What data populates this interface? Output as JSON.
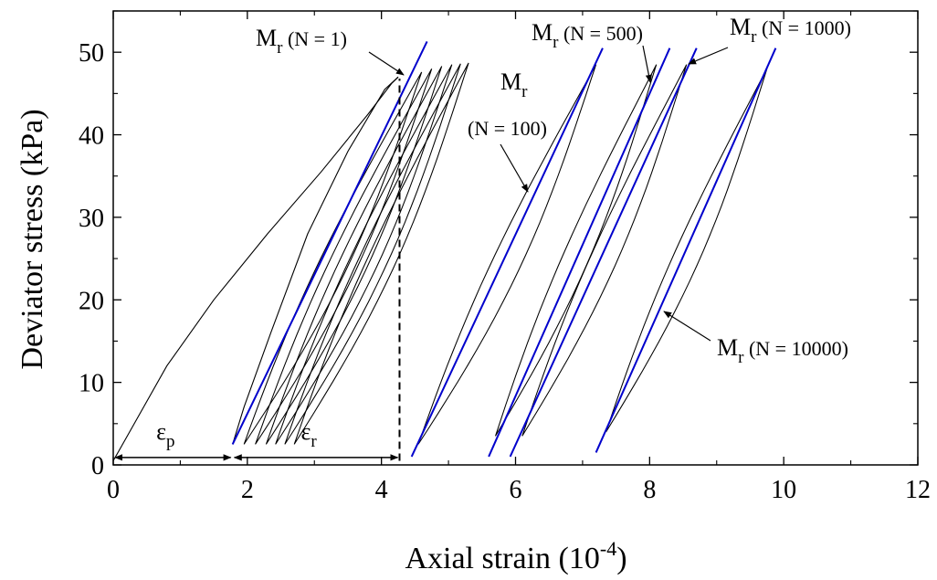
{
  "chart_data": {
    "type": "line",
    "xlabel": {
      "base": "Axial strain (10",
      "sup": "-4",
      "tail": ")"
    },
    "ylabel": "Deviator stress (kPa)",
    "xlim": [
      0,
      12
    ],
    "ylim": [
      0,
      55
    ],
    "x_ticks": [
      "0",
      "2",
      "4",
      "6",
      "8",
      "10",
      "12"
    ],
    "x_tick_values": [
      0,
      2,
      4,
      6,
      8,
      10,
      12
    ],
    "y_ticks": [
      "0",
      "10",
      "20",
      "30",
      "40",
      "50"
    ],
    "y_tick_values": [
      0,
      10,
      20,
      30,
      40,
      50
    ],
    "colors": {
      "hysteresis": "#000000",
      "resilient_modulus": "#0000cc",
      "annotation": "#000000"
    },
    "first_loading": [
      [
        0.0,
        0.5
      ],
      [
        0.3,
        4.8
      ],
      [
        0.8,
        12.0
      ],
      [
        1.5,
        20.0
      ],
      [
        2.3,
        28.0
      ],
      [
        3.1,
        35.5
      ],
      [
        3.8,
        42.5
      ],
      [
        4.15,
        46.2
      ],
      [
        4.25,
        47.0
      ]
    ],
    "first_unloading": [
      [
        4.25,
        47.0
      ],
      [
        4.05,
        45.5
      ],
      [
        3.5,
        38.0
      ],
      [
        2.9,
        28.0
      ],
      [
        2.35,
        16.0
      ],
      [
        1.95,
        7.0
      ],
      [
        1.78,
        2.5
      ]
    ],
    "early_cycles": [
      {
        "peak": [
          4.6,
          47.6
        ],
        "min": [
          1.95,
          2.5
        ]
      },
      {
        "peak": [
          4.75,
          48.0
        ],
        "min": [
          2.12,
          2.5
        ]
      },
      {
        "peak": [
          4.9,
          48.3
        ],
        "min": [
          2.28,
          2.5
        ]
      },
      {
        "peak": [
          5.05,
          48.5
        ],
        "min": [
          2.42,
          2.5
        ]
      },
      {
        "peak": [
          5.18,
          48.6
        ],
        "min": [
          2.56,
          2.5
        ]
      },
      {
        "peak": [
          5.3,
          48.7
        ],
        "min": [
          2.7,
          2.5
        ]
      }
    ],
    "later_cycles": [
      {
        "N": "100",
        "peak": [
          7.2,
          48.5
        ],
        "min": [
          4.55,
          2.5
        ]
      },
      {
        "N": "500",
        "peak": [
          8.1,
          48.5
        ],
        "min": [
          5.7,
          3.5
        ]
      },
      {
        "N": "1000",
        "peak": [
          8.55,
          48.5
        ],
        "min": [
          6.1,
          3.5
        ]
      },
      {
        "N": "10000",
        "peak": [
          9.75,
          48.0
        ],
        "min": [
          7.35,
          4.0
        ]
      }
    ],
    "modulus_lines": [
      {
        "N": "1",
        "from": [
          1.78,
          2.5
        ],
        "to": [
          4.68,
          51.3
        ]
      },
      {
        "N": "100",
        "from": [
          4.45,
          1.0
        ],
        "to": [
          7.3,
          50.5
        ]
      },
      {
        "N": "500",
        "from": [
          5.6,
          1.0
        ],
        "to": [
          8.3,
          50.5
        ]
      },
      {
        "N": "1000",
        "from": [
          5.92,
          1.0
        ],
        "to": [
          8.7,
          50.5
        ]
      },
      {
        "N": "10000",
        "from": [
          7.2,
          1.5
        ],
        "to": [
          9.88,
          50.5
        ]
      }
    ],
    "dashed_line": {
      "x": 4.27,
      "y_from": 0.5,
      "y_to": 46.8
    },
    "strain_arrows": {
      "plastic": {
        "x_from": 0.0,
        "x_to": 1.78,
        "y": 0.9,
        "symbol": "ε",
        "sub": "p"
      },
      "resilient": {
        "x_from": 1.78,
        "x_to": 4.27,
        "y": 0.9,
        "symbol": "ε",
        "sub": "r"
      }
    },
    "annotations": [
      {
        "id": "n1",
        "M": "M",
        "sub": "r",
        "text": " (N = 1)"
      },
      {
        "id": "n500",
        "M": "M",
        "sub": "r",
        "text": " (N = 500)"
      },
      {
        "id": "n1000",
        "M": "M",
        "sub": "r",
        "text": " (N = 1000)"
      },
      {
        "id": "n100",
        "M": "M",
        "sub": "r",
        "text": "(N = 100)"
      },
      {
        "id": "n10000",
        "M": "M",
        "sub": "r",
        "text": " (N = 10000)"
      }
    ]
  }
}
